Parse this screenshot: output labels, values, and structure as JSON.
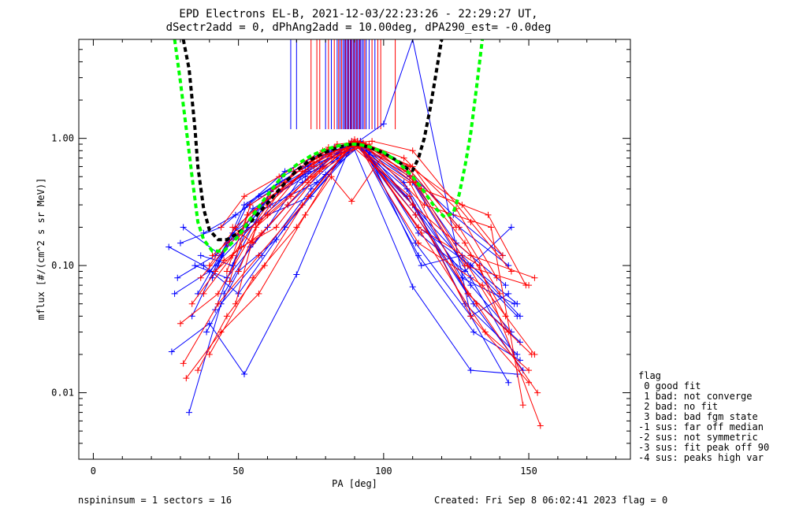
{
  "chart_data": {
    "type": "line",
    "title": "EPD Electrons EL-B, 2021-12-03/22:23:26 - 22:29:27 UT,",
    "subtitle": "dSectr2add = 0, dPhAng2add = 10.00deg, dPA290_est=  -0.0deg",
    "xlabel": "PA [deg]",
    "ylabel": "mflux [#/(cm^2 s sr MeV)]",
    "xlim": [
      -5,
      185
    ],
    "ylim": [
      0.003,
      6.0
    ],
    "yscale": "log",
    "x_ticks": [
      0,
      50,
      100,
      150
    ],
    "x_tick_labels": [
      "0",
      "50",
      "100",
      "150"
    ],
    "y_ticks": [
      0.01,
      0.1,
      1.0
    ],
    "y_tick_labels": [
      "0.01",
      "0.10",
      "1.00"
    ],
    "colors": {
      "blue": "#0000ff",
      "red": "#ff0000",
      "green": "#00ff00",
      "black": "#000000"
    },
    "fit_curves": [
      {
        "color": "black",
        "style": "dashed",
        "x": [
          31,
          33,
          35,
          36,
          38,
          40,
          43,
          46,
          50,
          55,
          60,
          65,
          70,
          75,
          80,
          85,
          88,
          90,
          92,
          95,
          100,
          105,
          108,
          110,
          112,
          114,
          116,
          118,
          120
        ],
        "y": [
          6.0,
          3.5,
          1.2,
          0.6,
          0.28,
          0.19,
          0.16,
          0.16,
          0.18,
          0.23,
          0.31,
          0.42,
          0.56,
          0.68,
          0.78,
          0.86,
          0.89,
          0.9,
          0.89,
          0.85,
          0.77,
          0.66,
          0.58,
          0.56,
          0.7,
          1.0,
          1.7,
          3.2,
          6.0
        ]
      },
      {
        "color": "green",
        "style": "dashed",
        "x": [
          28,
          30,
          32,
          34,
          36,
          38,
          41,
          45,
          50,
          55,
          60,
          65,
          70,
          75,
          80,
          85,
          88,
          90,
          92,
          95,
          100,
          105,
          110,
          114,
          118,
          121,
          124,
          126,
          128,
          130,
          132,
          134
        ],
        "y": [
          6.0,
          2.8,
          1.2,
          0.5,
          0.22,
          0.16,
          0.13,
          0.13,
          0.17,
          0.25,
          0.36,
          0.5,
          0.62,
          0.73,
          0.82,
          0.88,
          0.9,
          0.9,
          0.89,
          0.86,
          0.78,
          0.65,
          0.5,
          0.38,
          0.28,
          0.24,
          0.26,
          0.36,
          0.6,
          1.1,
          2.5,
          6.0
        ]
      }
    ],
    "series": [
      {
        "color": "blue",
        "x": [
          27,
          40,
          52,
          70,
          89,
          110,
          130,
          146
        ],
        "y": [
          0.021,
          0.035,
          0.014,
          0.085,
          0.92,
          0.068,
          0.015,
          0.014
        ]
      },
      {
        "color": "blue",
        "x": [
          28,
          40,
          56,
          72,
          89,
          108,
          128,
          146
        ],
        "y": [
          0.06,
          0.09,
          0.22,
          0.45,
          0.95,
          0.4,
          0.05,
          0.02
        ]
      },
      {
        "color": "blue",
        "x": [
          29,
          42,
          55,
          73,
          90,
          107,
          127,
          145
        ],
        "y": [
          0.08,
          0.12,
          0.28,
          0.5,
          0.94,
          0.45,
          0.08,
          0.05
        ]
      },
      {
        "color": "blue",
        "x": [
          30,
          44,
          57,
          73,
          90,
          110,
          129,
          146
        ],
        "y": [
          0.15,
          0.2,
          0.35,
          0.6,
          0.9,
          0.3,
          0.1,
          0.04
        ]
      },
      {
        "color": "blue",
        "x": [
          31,
          44,
          58,
          74,
          90,
          108,
          129,
          147
        ],
        "y": [
          0.2,
          0.12,
          0.3,
          0.55,
          0.93,
          0.35,
          0.06,
          0.025
        ]
      },
      {
        "color": "blue",
        "x": [
          33,
          44,
          58,
          75,
          91,
          112,
          131,
          147
        ],
        "y": [
          0.007,
          0.05,
          0.12,
          0.4,
          0.95,
          0.12,
          0.03,
          0.018
        ]
      },
      {
        "color": "blue",
        "x": [
          34,
          46,
          60,
          75,
          91,
          112,
          130,
          146
        ],
        "y": [
          0.04,
          0.15,
          0.25,
          0.35,
          0.9,
          0.2,
          0.1,
          0.05
        ]
      },
      {
        "color": "blue",
        "x": [
          35,
          46,
          60,
          76,
          91,
          111,
          131,
          148
        ],
        "y": [
          0.1,
          0.08,
          0.2,
          0.7,
          0.92,
          0.25,
          0.05,
          0.015
        ]
      },
      {
        "color": "blue",
        "x": [
          36,
          48,
          61,
          77,
          92,
          110,
          130,
          144
        ],
        "y": [
          0.06,
          0.18,
          0.3,
          0.45,
          0.95,
          0.3,
          0.07,
          0.03
        ]
      },
      {
        "color": "blue",
        "x": [
          37,
          48,
          61,
          78,
          92,
          111,
          130,
          143
        ],
        "y": [
          0.12,
          0.1,
          0.38,
          0.65,
          0.9,
          0.15,
          0.04,
          0.06
        ]
      },
      {
        "color": "blue",
        "x": [
          38,
          49,
          62,
          79,
          93,
          112,
          128,
          144
        ],
        "y": [
          0.18,
          0.25,
          0.4,
          0.6,
          0.88,
          0.18,
          0.09,
          0.2
        ]
      },
      {
        "color": "blue",
        "x": [
          39,
          50,
          63,
          80,
          93,
          113,
          127,
          147
        ],
        "y": [
          0.03,
          0.09,
          0.16,
          0.52,
          0.92,
          0.1,
          0.12,
          0.04
        ]
      },
      {
        "color": "blue",
        "x": [
          41,
          52,
          64,
          81,
          92,
          108,
          126,
          143
        ],
        "y": [
          0.08,
          0.3,
          0.45,
          0.75,
          0.95,
          0.6,
          0.2,
          0.1
        ]
      },
      {
        "color": "blue",
        "x": [
          42,
          53,
          65,
          82,
          91,
          109,
          125,
          142
        ],
        "y": [
          0.045,
          0.2,
          0.5,
          0.8,
          0.9,
          0.5,
          0.15,
          0.07
        ]
      },
      {
        "color": "blue",
        "x": [
          43,
          53,
          66,
          83,
          90,
          108,
          124,
          141
        ],
        "y": [
          0.1,
          0.3,
          0.55,
          0.85,
          0.93,
          0.55,
          0.25,
          0.12
        ]
      },
      {
        "color": "blue",
        "x": [
          45,
          54,
          67,
          84,
          90,
          110,
          130,
          145
        ],
        "y": [
          0.06,
          0.14,
          0.3,
          0.7,
          0.92,
          0.45,
          0.08,
          0.02
        ]
      },
      {
        "color": "blue",
        "x": [
          26,
          38,
          50,
          66,
          90,
          100,
          110,
          130,
          143
        ],
        "y": [
          0.14,
          0.1,
          0.06,
          0.2,
          0.9,
          1.3,
          6.0,
          0.04,
          0.012
        ]
      },
      {
        "color": "red",
        "x": [
          30,
          43,
          56,
          72,
          89,
          108,
          128,
          150
        ],
        "y": [
          0.035,
          0.06,
          0.2,
          0.55,
          0.95,
          0.55,
          0.1,
          0.07
        ]
      },
      {
        "color": "red",
        "x": [
          31,
          43,
          57,
          72,
          89,
          109,
          129,
          151
        ],
        "y": [
          0.017,
          0.05,
          0.12,
          0.3,
          0.9,
          0.45,
          0.06,
          0.02
        ]
      },
      {
        "color": "red",
        "x": [
          32,
          44,
          57,
          73,
          88,
          109,
          130,
          150
        ],
        "y": [
          0.013,
          0.03,
          0.06,
          0.25,
          0.92,
          0.35,
          0.04,
          0.012
        ]
      },
      {
        "color": "red",
        "x": [
          34,
          45,
          58,
          74,
          90,
          110,
          130,
          152
        ],
        "y": [
          0.05,
          0.11,
          0.18,
          0.45,
          0.98,
          0.3,
          0.12,
          0.08
        ]
      },
      {
        "color": "red",
        "x": [
          36,
          46,
          59,
          74,
          90,
          111,
          132,
          153
        ],
        "y": [
          0.015,
          0.04,
          0.1,
          0.35,
          0.93,
          0.25,
          0.05,
          0.01
        ]
      },
      {
        "color": "red",
        "x": [
          37,
          47,
          60,
          75,
          91,
          112,
          133,
          154
        ],
        "y": [
          0.08,
          0.15,
          0.25,
          0.5,
          0.95,
          0.2,
          0.1,
          0.0055
        ]
      },
      {
        "color": "red",
        "x": [
          38,
          48,
          60,
          76,
          91,
          112,
          134,
          152
        ],
        "y": [
          0.06,
          0.12,
          0.3,
          0.65,
          0.9,
          0.15,
          0.07,
          0.02
        ]
      },
      {
        "color": "red",
        "x": [
          40,
          49,
          61,
          76,
          92,
          113,
          135,
          150
        ],
        "y": [
          0.1,
          0.2,
          0.35,
          0.6,
          0.88,
          0.18,
          0.03,
          0.015
        ]
      },
      {
        "color": "red",
        "x": [
          41,
          50,
          62,
          77,
          92,
          113,
          136,
          149
        ],
        "y": [
          0.12,
          0.18,
          0.4,
          0.7,
          0.93,
          0.4,
          0.25,
          0.07
        ]
      },
      {
        "color": "red",
        "x": [
          42,
          51,
          63,
          78,
          93,
          114,
          137,
          148
        ],
        "y": [
          0.09,
          0.14,
          0.2,
          0.55,
          0.9,
          0.3,
          0.2,
          0.008
        ]
      },
      {
        "color": "red",
        "x": [
          44,
          52,
          64,
          79,
          91,
          107,
          125,
          139
        ],
        "y": [
          0.2,
          0.35,
          0.5,
          0.8,
          0.95,
          0.7,
          0.28,
          0.08
        ]
      },
      {
        "color": "red",
        "x": [
          46,
          53,
          65,
          80,
          92,
          108,
          126,
          140
        ],
        "y": [
          0.09,
          0.25,
          0.4,
          0.75,
          0.9,
          0.6,
          0.2,
          0.06
        ]
      },
      {
        "color": "red",
        "x": [
          47,
          54,
          66,
          81,
          93,
          109,
          127,
          141
        ],
        "y": [
          0.075,
          0.3,
          0.45,
          0.85,
          0.92,
          0.6,
          0.3,
          0.12
        ]
      },
      {
        "color": "red",
        "x": [
          48,
          55,
          67,
          82,
          94,
          110,
          128,
          142
        ],
        "y": [
          0.2,
          0.15,
          0.3,
          0.72,
          0.88,
          0.5,
          0.15,
          0.04
        ]
      },
      {
        "color": "red",
        "x": [
          49,
          56,
          68,
          83,
          95,
          111,
          129,
          143
        ],
        "y": [
          0.05,
          0.2,
          0.35,
          0.8,
          0.9,
          0.45,
          0.1,
          0.03
        ]
      },
      {
        "color": "red",
        "x": [
          50,
          57,
          69,
          84,
          96,
          110,
          130,
          144
        ],
        "y": [
          0.09,
          0.22,
          0.55,
          0.9,
          0.95,
          0.8,
          0.22,
          0.09
        ]
      },
      {
        "color": "red",
        "x": [
          40,
          55,
          70,
          82,
          89,
          100,
          110,
          125
        ],
        "y": [
          0.02,
          0.08,
          0.2,
          0.5,
          0.32,
          0.75,
          0.6,
          0.2
        ]
      }
    ],
    "vertical_marks": [
      {
        "color": "blue",
        "x": [
          68,
          70,
          80,
          82,
          84,
          85,
          86,
          86.5,
          87,
          87.5,
          88,
          88.5,
          89,
          89.5,
          90,
          90.5,
          91,
          91.5,
          92,
          92.5,
          93,
          94,
          95,
          97
        ]
      },
      {
        "color": "red",
        "x": [
          75,
          77,
          78,
          81,
          83,
          84.5,
          85.5,
          86.8,
          87.8,
          88.8,
          89.8,
          90.8,
          91.8,
          93.5,
          96,
          98,
          99,
          104
        ]
      }
    ],
    "legend": {
      "title": "flag",
      "entries": [
        " 0 good fit",
        " 1 bad: not converge",
        " 2 bad: no fit",
        " 3 bad: bad fgm state",
        "-1 sus: far off median",
        "-2 sus: not symmetric",
        "-3 sus: fit peak off 90",
        "-4 sus: peaks high var"
      ],
      "placement": "right-bottom"
    },
    "grid": false
  },
  "footer": {
    "left": "nspininsum =  1  sectors = 16",
    "right": "Created: Fri Sep  8 06:02:41 2023   flag = 0"
  }
}
